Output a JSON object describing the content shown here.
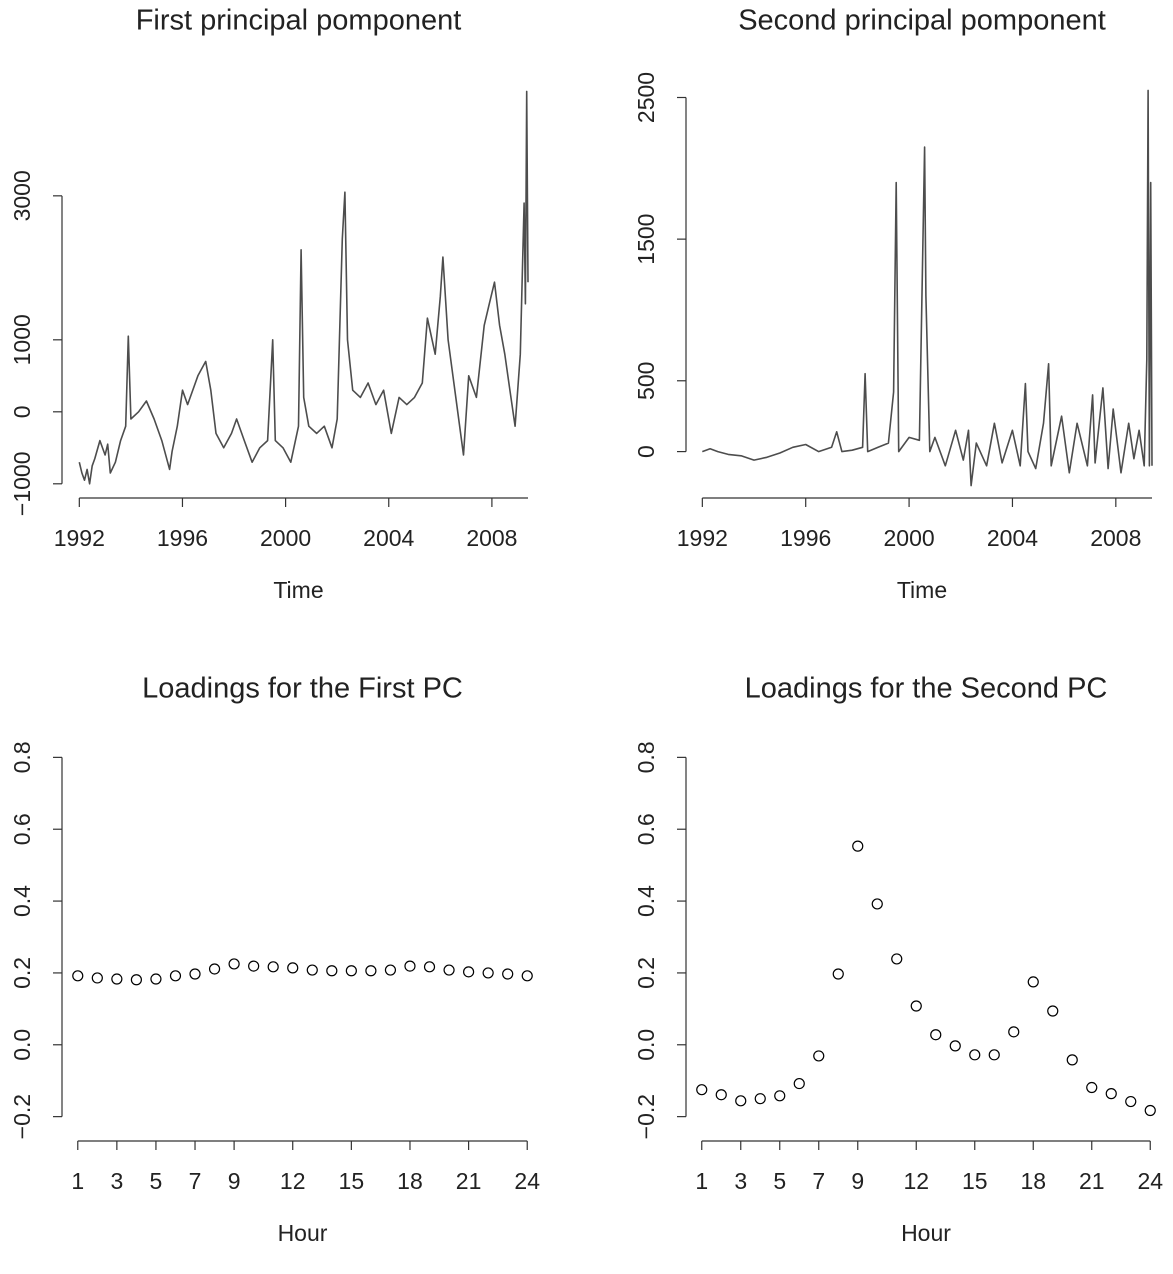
{
  "chart_data": [
    {
      "type": "line",
      "title": "First principal pomponent",
      "x_label": "Time",
      "color": "#4d4d4d",
      "x": [
        1992.0,
        1992.1,
        1992.2,
        1992.3,
        1992.4,
        1992.5,
        1992.6,
        1992.8,
        1993.0,
        1993.1,
        1993.2,
        1993.4,
        1993.6,
        1993.8,
        1993.9,
        1994.0,
        1994.3,
        1994.6,
        1994.9,
        1995.2,
        1995.5,
        1995.6,
        1995.8,
        1996.0,
        1996.2,
        1996.3,
        1996.6,
        1996.9,
        1997.1,
        1997.3,
        1997.6,
        1997.9,
        1998.1,
        1998.4,
        1998.7,
        1999.0,
        1999.3,
        1999.5,
        1999.6,
        1999.9,
        2000.2,
        2000.5,
        2000.6,
        2000.7,
        2000.9,
        2001.2,
        2001.5,
        2001.8,
        2002.0,
        2002.2,
        2002.3,
        2002.4,
        2002.6,
        2002.9,
        2003.2,
        2003.5,
        2003.8,
        2004.1,
        2004.4,
        2004.7,
        2005.0,
        2005.3,
        2005.5,
        2005.8,
        2006.0,
        2006.1,
        2006.3,
        2006.6,
        2006.9,
        2007.1,
        2007.4,
        2007.7,
        2007.9,
        2008.1,
        2008.3,
        2008.5,
        2008.7,
        2008.9,
        2009.1,
        2009.25,
        2009.3,
        2009.35,
        2009.4
      ],
      "values": [
        -700,
        -850,
        -950,
        -800,
        -1000,
        -750,
        -650,
        -400,
        -600,
        -450,
        -850,
        -700,
        -400,
        -200,
        1050,
        -100,
        0,
        150,
        -100,
        -400,
        -800,
        -550,
        -200,
        300,
        100,
        200,
        500,
        700,
        300,
        -300,
        -500,
        -300,
        -100,
        -400,
        -700,
        -500,
        -400,
        1000,
        -400,
        -500,
        -700,
        -200,
        2250,
        200,
        -200,
        -300,
        -200,
        -500,
        -100,
        2400,
        3050,
        1000,
        300,
        200,
        400,
        100,
        300,
        -300,
        200,
        100,
        200,
        400,
        1300,
        800,
        1600,
        2150,
        1000,
        200,
        -600,
        500,
        200,
        1200,
        1500,
        1800,
        1200,
        800,
        300,
        -200,
        800,
        2900,
        1500,
        4450,
        1800
      ],
      "xlim": [
        1991.6,
        2009.4
      ],
      "xticks": [
        1992,
        1996,
        2000,
        2004,
        2008
      ],
      "ylim": [
        -1100,
        4470
      ],
      "yticks": [
        {
          "value": -1000,
          "label": "−1000"
        },
        0,
        1000,
        3000
      ]
    },
    {
      "type": "line",
      "title": "Second principal pomponent",
      "x_label": "Time",
      "color": "#4d4d4d",
      "x": [
        1992.0,
        1992.3,
        1992.6,
        1993.0,
        1993.5,
        1994.0,
        1994.5,
        1995.0,
        1995.5,
        1996.0,
        1996.5,
        1997.0,
        1997.2,
        1997.4,
        1997.8,
        1998.2,
        1998.3,
        1998.4,
        1998.8,
        1999.2,
        1999.4,
        1999.5,
        1999.6,
        2000.0,
        2000.4,
        2000.6,
        2000.65,
        2000.8,
        2001.0,
        2001.4,
        2001.8,
        2002.1,
        2002.3,
        2002.4,
        2002.6,
        2003.0,
        2003.3,
        2003.6,
        2004.0,
        2004.3,
        2004.5,
        2004.6,
        2004.9,
        2005.2,
        2005.4,
        2005.5,
        2005.9,
        2006.2,
        2006.5,
        2006.9,
        2007.1,
        2007.2,
        2007.5,
        2007.7,
        2007.9,
        2008.2,
        2008.5,
        2008.7,
        2008.9,
        2009.1,
        2009.2,
        2009.25,
        2009.3,
        2009.35,
        2009.4
      ],
      "values": [
        0,
        20,
        0,
        -20,
        -30,
        -60,
        -40,
        -10,
        30,
        50,
        0,
        30,
        140,
        0,
        10,
        30,
        550,
        0,
        30,
        60,
        420,
        1900,
        0,
        100,
        80,
        2150,
        1100,
        0,
        100,
        -100,
        150,
        -60,
        150,
        -240,
        60,
        -100,
        200,
        -80,
        150,
        -100,
        480,
        0,
        -120,
        200,
        620,
        -100,
        250,
        -150,
        200,
        -100,
        400,
        -80,
        450,
        -120,
        300,
        -150,
        200,
        -50,
        150,
        -100,
        650,
        2550,
        -100,
        1900,
        -100
      ],
      "xlim": [
        1991.6,
        2009.4
      ],
      "xticks": [
        1992,
        1996,
        2000,
        2004,
        2008
      ],
      "ylim": [
        -250,
        2560
      ],
      "yticks": [
        0,
        500,
        1500,
        2500
      ]
    },
    {
      "type": "scatter",
      "title": "Loadings for the First PC",
      "x_label": "Hour",
      "color": "#000000",
      "x": [
        1,
        2,
        3,
        4,
        5,
        6,
        7,
        8,
        9,
        10,
        11,
        12,
        13,
        14,
        15,
        16,
        17,
        18,
        19,
        20,
        21,
        22,
        23,
        24
      ],
      "values": [
        0.192,
        0.186,
        0.183,
        0.181,
        0.183,
        0.192,
        0.197,
        0.211,
        0.225,
        0.219,
        0.217,
        0.214,
        0.208,
        0.206,
        0.206,
        0.206,
        0.208,
        0.219,
        0.217,
        0.208,
        0.203,
        0.2,
        0.197,
        0.192
      ],
      "xlim": [
        0.5,
        24.5
      ],
      "xticks": [
        1,
        3,
        5,
        7,
        9,
        12,
        15,
        18,
        21,
        24
      ],
      "ylim": [
        -0.24,
        0.84
      ],
      "yticks": [
        {
          "value": -0.2,
          "label": "−0.2"
        },
        {
          "value": 0,
          "label": "0.0"
        },
        0.2,
        0.4,
        0.6,
        0.8
      ]
    },
    {
      "type": "scatter",
      "title": "Loadings for the Second PC",
      "x_label": "Hour",
      "color": "#000000",
      "x": [
        1,
        2,
        3,
        4,
        5,
        6,
        7,
        8,
        9,
        10,
        11,
        12,
        13,
        14,
        15,
        16,
        17,
        18,
        19,
        20,
        21,
        22,
        23,
        24
      ],
      "values": [
        -0.125,
        -0.139,
        -0.156,
        -0.15,
        -0.142,
        -0.108,
        -0.031,
        0.197,
        0.553,
        0.392,
        0.239,
        0.108,
        0.028,
        -0.003,
        -0.028,
        -0.028,
        0.036,
        0.175,
        0.094,
        -0.042,
        -0.119,
        -0.136,
        -0.158,
        -0.183
      ],
      "xlim": [
        0.5,
        24.5
      ],
      "xticks": [
        1,
        3,
        5,
        7,
        9,
        12,
        15,
        18,
        21,
        24
      ],
      "ylim": [
        -0.24,
        0.84
      ],
      "yticks": [
        {
          "value": -0.2,
          "label": "−0.2"
        },
        {
          "value": 0,
          "label": "0.0"
        },
        0.2,
        0.4,
        0.6,
        0.8
      ]
    }
  ]
}
